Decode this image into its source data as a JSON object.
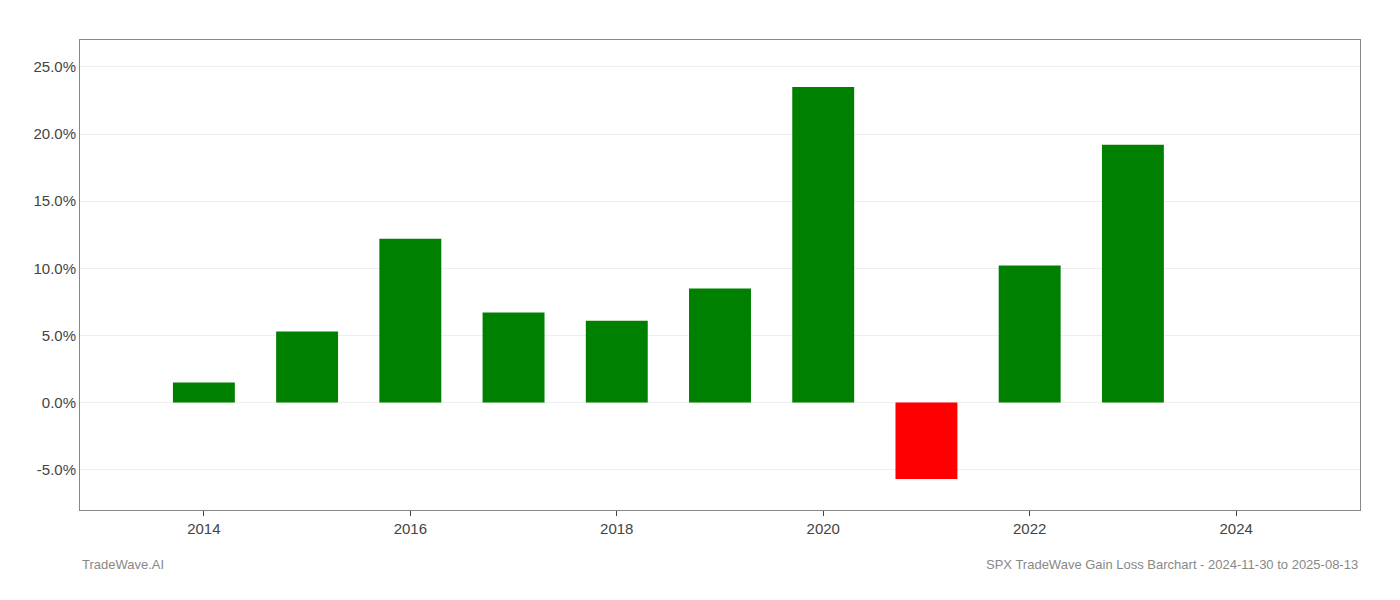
{
  "chart_data": {
    "type": "bar",
    "x": [
      2014,
      2015,
      2016,
      2017,
      2018,
      2019,
      2020,
      2021,
      2022,
      2023
    ],
    "values": [
      0.015,
      0.053,
      0.122,
      0.067,
      0.061,
      0.085,
      0.235,
      -0.057,
      0.102,
      0.192
    ],
    "colors": [
      "#008000",
      "#008000",
      "#008000",
      "#008000",
      "#008000",
      "#008000",
      "#008000",
      "#ff0000",
      "#008000",
      "#008000"
    ],
    "xlim": [
      2012.8,
      2025.2
    ],
    "xticks": [
      2014,
      2016,
      2018,
      2020,
      2022,
      2024
    ],
    "ylim": [
      -0.08,
      0.27
    ],
    "yticks": [
      {
        "value": -0.05,
        "label": "-5.0%"
      },
      {
        "value": 0.0,
        "label": "0.0%"
      },
      {
        "value": 0.05,
        "label": "5.0%"
      },
      {
        "value": 0.1,
        "label": "10.0%"
      },
      {
        "value": 0.15,
        "label": "15.0%"
      },
      {
        "value": 0.2,
        "label": "20.0%"
      },
      {
        "value": 0.25,
        "label": "25.0%"
      }
    ],
    "grid": true,
    "annotations": [
      "TradeWave.AI",
      "SPX TradeWave Gain Loss Barchart - 2024-11-30 to 2025-08-13"
    ]
  }
}
